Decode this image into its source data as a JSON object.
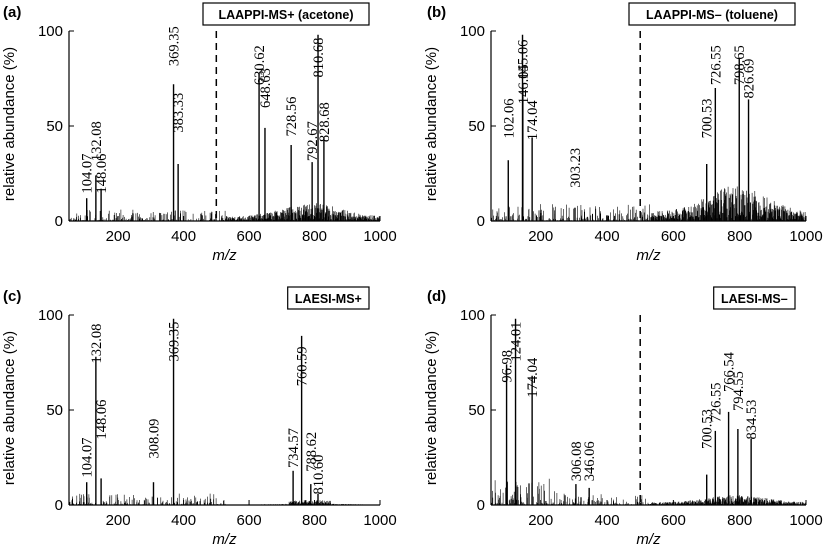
{
  "chart_data": [
    {
      "panel": "(a)",
      "type": "bar",
      "title": "LAAPPI-MS+ (acetone)",
      "xlabel": "m/z",
      "ylabel": "relative abundance (%)",
      "xlim": [
        50,
        1000
      ],
      "ylim": [
        0,
        100
      ],
      "xticks": [
        "200",
        "400",
        "600",
        "800",
        "1000"
      ],
      "yticks": [
        "0",
        "50",
        "100"
      ],
      "divider_mz": 500,
      "peaks": [
        {
          "mz": 104.07,
          "y": 12,
          "label": "104.07",
          "label_y": 25
        },
        {
          "mz": 132.08,
          "y": 24,
          "label": "132.08",
          "label_y": 42
        },
        {
          "mz": 148.06,
          "y": 17,
          "label": "148.06",
          "label_y": 25
        },
        {
          "mz": 369.35,
          "y": 72,
          "label": "369.35",
          "label_y": 92
        },
        {
          "mz": 383.33,
          "y": 30,
          "label": "383.33",
          "label_y": 57
        },
        {
          "mz": 630.62,
          "y": 78,
          "label": "630.62",
          "label_y": 82
        },
        {
          "mz": 648.63,
          "y": 49,
          "label": "648.63",
          "label_y": 70
        },
        {
          "mz": 728.56,
          "y": 40,
          "label": "728.56",
          "label_y": 55
        },
        {
          "mz": 792.67,
          "y": 31,
          "label": "792.67",
          "label_y": 42
        },
        {
          "mz": 810.68,
          "y": 98,
          "label": "810.68",
          "label_y": 86
        },
        {
          "mz": 828.68,
          "y": 44,
          "label": "828.68",
          "label_y": 52
        }
      ]
    },
    {
      "panel": "(b)",
      "type": "bar",
      "title": "LAAPPI-MS– (toluene)",
      "xlabel": "m/z",
      "ylabel": "relative abundance (%)",
      "xlim": [
        50,
        1000
      ],
      "ylim": [
        0,
        100
      ],
      "xticks": [
        "200",
        "400",
        "600",
        "800",
        "1000"
      ],
      "yticks": [
        "0",
        "50",
        "100"
      ],
      "divider_mz": 500,
      "peaks": [
        {
          "mz": 102.06,
          "y": 32,
          "label": "102.06",
          "label_y": 54
        },
        {
          "mz": 145.06,
          "y": 98,
          "label": "145.06",
          "label_y": 85
        },
        {
          "mz": 146.05,
          "y": 72,
          "label": "146.05",
          "label_y": 72
        },
        {
          "mz": 174.04,
          "y": 44,
          "label": "174.04",
          "label_y": 53
        },
        {
          "mz": 303.23,
          "y": 7,
          "label": "303.23",
          "label_y": 28
        },
        {
          "mz": 700.53,
          "y": 30,
          "label": "700.53",
          "label_y": 54
        },
        {
          "mz": 726.55,
          "y": 70,
          "label": "726.55",
          "label_y": 82
        },
        {
          "mz": 798.65,
          "y": 86,
          "label": "798.65",
          "label_y": 82
        },
        {
          "mz": 826.69,
          "y": 64,
          "label": "826.69",
          "label_y": 75
        }
      ]
    },
    {
      "panel": "(c)",
      "type": "bar",
      "title": "LAESI-MS+",
      "xlabel": "m/z",
      "ylabel": "relative abundance (%)",
      "xlim": [
        50,
        1000
      ],
      "ylim": [
        0,
        100
      ],
      "xticks": [
        "200",
        "400",
        "600",
        "800",
        "1000"
      ],
      "yticks": [
        "0",
        "50",
        "100"
      ],
      "divider_mz": null,
      "peaks": [
        {
          "mz": 104.07,
          "y": 12,
          "label": "104.07",
          "label_y": 25
        },
        {
          "mz": 132.08,
          "y": 78,
          "label": "132.08",
          "label_y": 85
        },
        {
          "mz": 148.06,
          "y": 14,
          "label": "148.06",
          "label_y": 45
        },
        {
          "mz": 308.09,
          "y": 12,
          "label": "308.09",
          "label_y": 35
        },
        {
          "mz": 369.35,
          "y": 98,
          "label": "369.35",
          "label_y": 86
        },
        {
          "mz": 760.59,
          "y": 89,
          "label": "760.59",
          "label_y": 73
        },
        {
          "mz": 734.57,
          "y": 18,
          "label": "734.57",
          "label_y": 30
        },
        {
          "mz": 788.62,
          "y": 11,
          "label": "788.62",
          "label_y": 28
        },
        {
          "mz": 810.6,
          "y": 6,
          "label": "810.60",
          "label_y": 16
        }
      ]
    },
    {
      "panel": "(d)",
      "type": "bar",
      "title": "LAESI-MS–",
      "xlabel": "m/z",
      "ylabel": "relative abundance (%)",
      "xlim": [
        50,
        1000
      ],
      "ylim": [
        0,
        100
      ],
      "xticks": [
        "200",
        "400",
        "600",
        "800",
        "1000"
      ],
      "yticks": [
        "0",
        "50",
        "100"
      ],
      "divider_mz": 500,
      "peaks": [
        {
          "mz": 96.98,
          "y": 74,
          "label": "96.98",
          "label_y": 73
        },
        {
          "mz": 124.01,
          "y": 98,
          "label": "124.01",
          "label_y": 86
        },
        {
          "mz": 174.04,
          "y": 68,
          "label": "174.04",
          "label_y": 67
        },
        {
          "mz": 306.08,
          "y": 11,
          "label": "306.08",
          "label_y": 23
        },
        {
          "mz": 346.06,
          "y": 9,
          "label": "346.06",
          "label_y": 23
        },
        {
          "mz": 700.53,
          "y": 16,
          "label": "700.53",
          "label_y": 40
        },
        {
          "mz": 726.55,
          "y": 39,
          "label": "726.55",
          "label_y": 54
        },
        {
          "mz": 766.54,
          "y": 49,
          "label": "766.54",
          "label_y": 70
        },
        {
          "mz": 794.55,
          "y": 40,
          "label": "794.55",
          "label_y": 60
        },
        {
          "mz": 834.53,
          "y": 35,
          "label": "834.53",
          "label_y": 45
        }
      ]
    }
  ]
}
